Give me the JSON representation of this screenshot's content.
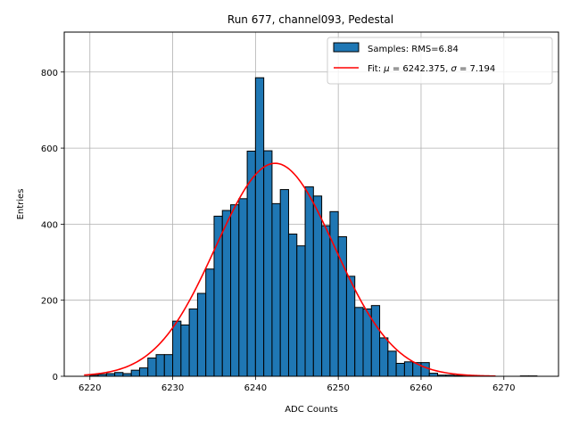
{
  "chart_data": {
    "type": "bar",
    "title": "Run 677, channel093, Pedestal",
    "xlabel": "ADC Counts",
    "ylabel": "Entries",
    "xlim": [
      6216.9,
      6276.6
    ],
    "ylim": [
      0,
      905
    ],
    "grid": true,
    "legend_position": "top-right",
    "x_ticks": [
      6220,
      6230,
      6240,
      6250,
      6260,
      6270
    ],
    "y_ticks": [
      0,
      200,
      400,
      600,
      800
    ],
    "histogram": {
      "label": "Samples: RMS=6.84",
      "color": "#1f77b4",
      "bin_width": 1,
      "bin_starts": [
        6220,
        6221,
        6222,
        6223,
        6224,
        6225,
        6226,
        6227,
        6228,
        6229,
        6230,
        6231,
        6232,
        6233,
        6234,
        6235,
        6236,
        6237,
        6238,
        6239,
        6240,
        6241,
        6242,
        6243,
        6244,
        6245,
        6246,
        6247,
        6248,
        6249,
        6250,
        6251,
        6252,
        6253,
        6254,
        6255,
        6256,
        6257,
        6258,
        6259,
        6260,
        6261,
        6262,
        6263,
        6264,
        6265,
        6266,
        6267,
        6268,
        6269,
        6270,
        6271,
        6272,
        6273
      ],
      "counts": [
        3,
        5,
        7,
        10,
        7,
        16,
        22,
        48,
        57,
        57,
        145,
        135,
        177,
        218,
        282,
        421,
        436,
        451,
        467,
        592,
        785,
        593,
        454,
        491,
        374,
        343,
        498,
        474,
        396,
        433,
        367,
        263,
        181,
        177,
        186,
        101,
        66,
        34,
        38,
        36,
        36,
        8,
        3,
        3,
        2,
        1,
        1,
        1,
        0,
        0,
        0,
        0,
        1,
        1
      ]
    },
    "fit": {
      "label": "Fit: μ = 6242.375, σ = 7.194",
      "label_prefix": "Fit: ",
      "mu_symbol": "μ",
      "mu_value": " = 6242.375, ",
      "sigma_symbol": "σ",
      "sigma_value": " = 7.194",
      "color": "#ff0000",
      "mu": 6242.375,
      "sigma": 7.194,
      "amplitude": 560,
      "x_range": [
        6219.3,
        6269
      ]
    }
  }
}
